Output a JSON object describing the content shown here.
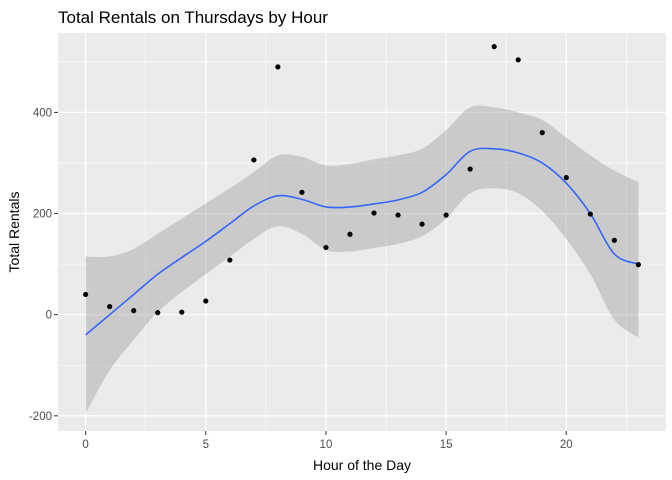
{
  "chart_data": {
    "type": "scatter",
    "title": "Total Rentals on Thursdays by Hour",
    "xlabel": "Hour of the Day",
    "ylabel": "Total Rentals",
    "xlim": [
      -1.15,
      24.15
    ],
    "ylim": [
      -230,
      557
    ],
    "x_ticks": [
      0,
      5,
      10,
      15,
      20
    ],
    "x_tick_labels": [
      "0",
      "5",
      "10",
      "15",
      "20"
    ],
    "y_ticks": [
      -200,
      0,
      200,
      400
    ],
    "y_tick_labels": [
      "-200",
      "0",
      "200",
      "400"
    ],
    "grid": true,
    "points": {
      "x": [
        0,
        1,
        2,
        3,
        4,
        5,
        6,
        7,
        8,
        9,
        10,
        11,
        12,
        13,
        14,
        15,
        16,
        17,
        18,
        19,
        20,
        21,
        22,
        23
      ],
      "y": [
        40,
        16,
        8,
        4,
        5,
        27,
        108,
        306,
        490,
        242,
        133,
        159,
        201,
        197,
        179,
        197,
        288,
        530,
        504,
        360,
        271,
        199,
        147,
        99
      ]
    },
    "smooth": {
      "x": [
        0,
        1,
        2,
        3,
        4,
        5,
        6,
        7,
        8,
        9,
        10,
        11,
        12,
        13,
        14,
        15,
        16,
        17,
        18,
        19,
        20,
        21,
        22,
        23
      ],
      "y": [
        -40,
        0,
        40,
        80,
        113,
        145,
        180,
        215,
        235,
        228,
        213,
        213,
        219,
        227,
        242,
        277,
        323,
        328,
        320,
        300,
        260,
        200,
        120,
        100
      ],
      "lower": [
        -195,
        -110,
        -50,
        5,
        45,
        80,
        115,
        150,
        175,
        160,
        128,
        125,
        132,
        140,
        155,
        190,
        240,
        250,
        240,
        205,
        150,
        80,
        -10,
        -45
      ],
      "upper": [
        115,
        115,
        130,
        160,
        190,
        220,
        250,
        282,
        315,
        312,
        295,
        298,
        307,
        315,
        328,
        365,
        410,
        410,
        400,
        385,
        350,
        315,
        285,
        262
      ]
    },
    "colors": {
      "panel": "#ebebeb",
      "grid": "#ffffff",
      "points": "#000000",
      "smooth_line": "#3366ff",
      "ribbon": "#999999"
    }
  }
}
